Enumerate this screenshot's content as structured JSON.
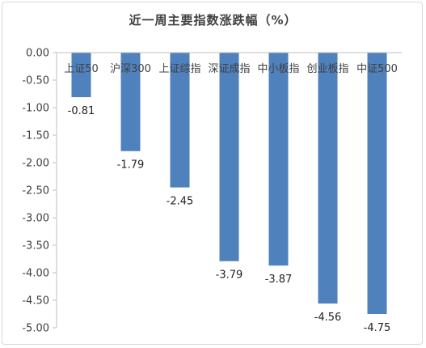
{
  "chart_data": {
    "type": "bar",
    "title": "近一周主要指数涨跌幅（%）",
    "categories": [
      "上证50",
      "沪深300",
      "上证综指",
      "深证成指",
      "中小板指",
      "创业板指",
      "中证500"
    ],
    "values": [
      -0.81,
      -1.79,
      -2.45,
      -3.79,
      -3.87,
      -4.56,
      -4.75
    ],
    "data_labels": [
      "-0.81",
      "-1.79",
      "-2.45",
      "-3.79",
      "-3.87",
      "-4.56",
      "-4.75"
    ],
    "yticks": [
      "0.00",
      "-0.50",
      "-1.00",
      "-1.50",
      "-2.00",
      "-2.50",
      "-3.00",
      "-3.50",
      "-4.00",
      "-4.50",
      "-5.00"
    ],
    "ylim": [
      -5.0,
      0.0
    ],
    "grid": false,
    "bar_color": "#4f81bd"
  }
}
